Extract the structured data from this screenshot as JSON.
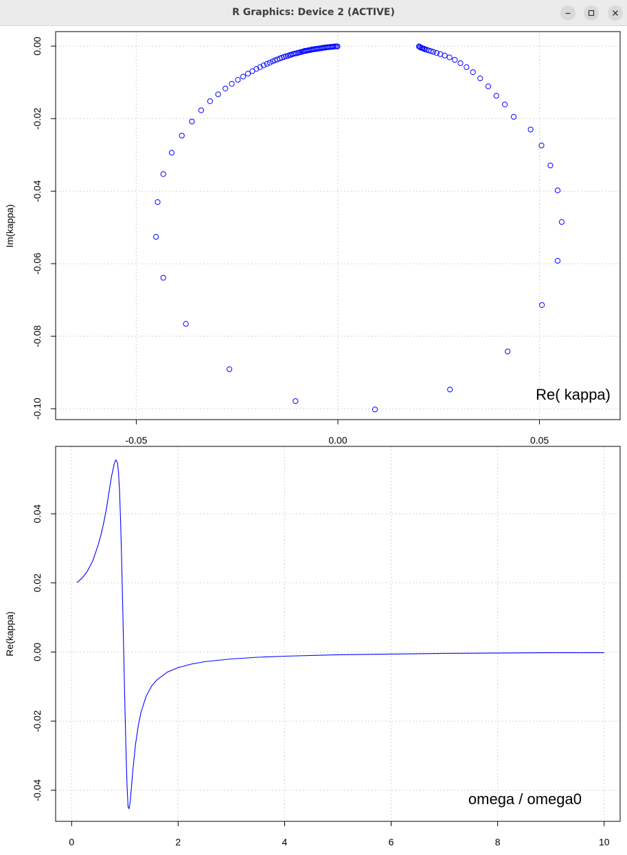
{
  "window": {
    "title": "R Graphics: Device 2 (ACTIVE)",
    "buttons": [
      "minimize-icon",
      "maximize-icon",
      "close-icon"
    ]
  },
  "colors": {
    "series": "#0000ff",
    "axis": "#000000",
    "grid": "#d3d3d3",
    "titlebar": "#ebebeb"
  },
  "chart_data": [
    {
      "type": "scatter",
      "xlabel": "",
      "ylabel": "Im(kappa)",
      "annotation": "Re( kappa)",
      "xlim": [
        -0.07,
        0.07
      ],
      "ylim": [
        -0.103,
        0.004
      ],
      "x_ticks": [
        -0.05,
        0.0,
        0.05
      ],
      "x_tick_labels": [
        "-0.05",
        "0.00",
        "0.05"
      ],
      "y_ticks": [
        0.0,
        -0.02,
        -0.04,
        -0.06,
        -0.08,
        -0.1
      ],
      "y_tick_labels": [
        "0.00",
        "-0.02",
        "-0.04",
        "-0.06",
        "-0.08",
        "-0.10"
      ],
      "grid": true,
      "marker": "open-circle",
      "series": [
        {
          "values": [
            [
              0.0201,
              -0.0001
            ],
            [
              0.0203,
              -0.0002
            ],
            [
              0.0205,
              -0.0004
            ],
            [
              0.0208,
              -0.0005
            ],
            [
              0.021,
              -0.0006
            ],
            [
              0.0213,
              -0.0007
            ],
            [
              0.0216,
              -0.0009
            ],
            [
              0.022,
              -0.001
            ],
            [
              0.0225,
              -0.0012
            ],
            [
              0.0231,
              -0.0014
            ],
            [
              0.0237,
              -0.0016
            ],
            [
              0.0245,
              -0.0019
            ],
            [
              0.0254,
              -0.0022
            ],
            [
              0.0265,
              -0.0026
            ],
            [
              0.0277,
              -0.0031
            ],
            [
              0.029,
              -0.0038
            ],
            [
              0.0304,
              -0.0047
            ],
            [
              0.0319,
              -0.0058
            ],
            [
              0.0335,
              -0.0072
            ],
            [
              0.0353,
              -0.0089
            ],
            [
              0.0373,
              -0.0111
            ],
            [
              0.0393,
              -0.0137
            ],
            [
              0.0414,
              -0.0161
            ],
            [
              0.0436,
              -0.0195
            ],
            [
              0.0478,
              -0.023
            ],
            [
              0.0505,
              -0.0274
            ],
            [
              0.0527,
              -0.0329
            ],
            [
              0.0545,
              -0.0398
            ],
            [
              0.0555,
              -0.0485
            ],
            [
              0.0545,
              -0.0592
            ],
            [
              0.0506,
              -0.0714
            ],
            [
              0.0421,
              -0.0842
            ],
            [
              0.0278,
              -0.0947
            ],
            [
              0.0092,
              -0.1002
            ],
            [
              -0.0105,
              -0.0979
            ],
            [
              -0.0269,
              -0.0891
            ],
            [
              -0.0377,
              -0.0766
            ],
            [
              -0.0433,
              -0.0639
            ],
            [
              -0.0451,
              -0.0526
            ],
            [
              -0.0447,
              -0.043
            ],
            [
              -0.0433,
              -0.0353
            ],
            [
              -0.0412,
              -0.0294
            ],
            [
              -0.0387,
              -0.0247
            ],
            [
              -0.0362,
              -0.0208
            ],
            [
              -0.0339,
              -0.0177
            ],
            [
              -0.0317,
              -0.0152
            ],
            [
              -0.0297,
              -0.0133
            ],
            [
              -0.0279,
              -0.0117
            ],
            [
              -0.0263,
              -0.0104
            ],
            [
              -0.0248,
              -0.0093
            ],
            [
              -0.0235,
              -0.0084
            ],
            [
              -0.0223,
              -0.0076
            ],
            [
              -0.0212,
              -0.0069
            ],
            [
              -0.0202,
              -0.0063
            ],
            [
              -0.0193,
              -0.0058
            ],
            [
              -0.0184,
              -0.0053
            ],
            [
              -0.0176,
              -0.0049
            ],
            [
              -0.0169,
              -0.0046
            ],
            [
              -0.0162,
              -0.0042
            ],
            [
              -0.0156,
              -0.0039
            ],
            [
              -0.015,
              -0.0037
            ],
            [
              -0.0144,
              -0.0034
            ],
            [
              -0.0139,
              -0.0032
            ],
            [
              -0.0134,
              -0.003
            ],
            [
              -0.0129,
              -0.0028
            ],
            [
              -0.0124,
              -0.0027
            ],
            [
              -0.012,
              -0.0025
            ],
            [
              -0.0116,
              -0.0024
            ],
            [
              -0.0112,
              -0.0022
            ],
            [
              -0.0108,
              -0.0021
            ],
            [
              -0.0104,
              -0.002
            ],
            [
              -0.01,
              -0.0019
            ],
            [
              -0.0097,
              -0.0018
            ],
            [
              -0.0094,
              -0.0017
            ],
            [
              -0.009,
              -0.0016
            ],
            [
              -0.0087,
              -0.0015
            ],
            [
              -0.0084,
              -0.0014
            ],
            [
              -0.0081,
              -0.0013
            ],
            [
              -0.0078,
              -0.0013
            ],
            [
              -0.0075,
              -0.0012
            ],
            [
              -0.0072,
              -0.0011
            ],
            [
              -0.0069,
              -0.0011
            ],
            [
              -0.0066,
              -0.001
            ],
            [
              -0.0063,
              -0.0009
            ],
            [
              -0.006,
              -0.0009
            ],
            [
              -0.0057,
              -0.0008
            ],
            [
              -0.0054,
              -0.0008
            ],
            [
              -0.0051,
              -0.0007
            ],
            [
              -0.0048,
              -0.0007
            ],
            [
              -0.0045,
              -0.0006
            ],
            [
              -0.0042,
              -0.0006
            ],
            [
              -0.0039,
              -0.0005
            ],
            [
              -0.0036,
              -0.0005
            ],
            [
              -0.0033,
              -0.0004
            ],
            [
              -0.003,
              -0.0004
            ],
            [
              -0.0027,
              -0.0003
            ],
            [
              -0.0024,
              -0.0003
            ],
            [
              -0.0021,
              -0.0003
            ],
            [
              -0.0018,
              -0.0002
            ],
            [
              -0.0015,
              -0.0002
            ],
            [
              -0.0012,
              -0.0002
            ],
            [
              -0.0009,
              -0.0001
            ],
            [
              -0.0006,
              -0.0001
            ],
            [
              -0.0003,
              -0.0001
            ],
            [
              -0.0001,
              -0.0001
            ]
          ]
        }
      ]
    },
    {
      "type": "line",
      "xlabel": "",
      "ylabel": "Re(kappa)",
      "annotation": "omega / omega0",
      "xlim": [
        -0.3,
        10.3
      ],
      "ylim": [
        -0.049,
        0.0595
      ],
      "x_ticks": [
        0,
        2,
        4,
        6,
        8,
        10
      ],
      "x_tick_labels": [
        "0",
        "2",
        "4",
        "6",
        "8",
        "10"
      ],
      "y_ticks": [
        0.04,
        0.02,
        0.0,
        -0.02,
        -0.04
      ],
      "y_tick_labels": [
        "0.04",
        "0.02",
        "0.00",
        "-0.02",
        "-0.04"
      ],
      "grid": true,
      "series": [
        {
          "x": [
            0.1,
            0.2,
            0.3,
            0.4,
            0.5,
            0.55,
            0.6,
            0.65,
            0.7,
            0.75,
            0.8,
            0.83,
            0.86,
            0.88,
            0.9,
            0.92,
            0.94,
            0.96,
            0.98,
            1.0,
            1.02,
            1.04,
            1.06,
            1.08,
            1.1,
            1.12,
            1.15,
            1.2,
            1.25,
            1.3,
            1.4,
            1.5,
            1.6,
            1.8,
            2.0,
            2.25,
            2.5,
            3.0,
            3.5,
            4.0,
            5.0,
            6.0,
            7.0,
            8.0,
            9.0,
            10.0
          ],
          "values": [
            0.0201,
            0.0214,
            0.0235,
            0.0265,
            0.031,
            0.0338,
            0.0372,
            0.0411,
            0.046,
            0.0508,
            0.0544,
            0.0556,
            0.0548,
            0.0521,
            0.0465,
            0.0378,
            0.0262,
            0.0127,
            -0.0013,
            -0.0153,
            -0.0278,
            -0.0383,
            -0.0448,
            -0.0453,
            -0.0434,
            -0.0398,
            -0.0343,
            -0.0268,
            -0.0215,
            -0.0176,
            -0.0128,
            -0.0099,
            -0.0081,
            -0.0058,
            -0.0045,
            -0.0035,
            -0.0028,
            -0.002,
            -0.0015,
            -0.0012,
            -0.0008,
            -0.0006,
            -0.0004,
            -0.0003,
            -0.0002,
            -0.0002
          ]
        }
      ]
    }
  ]
}
